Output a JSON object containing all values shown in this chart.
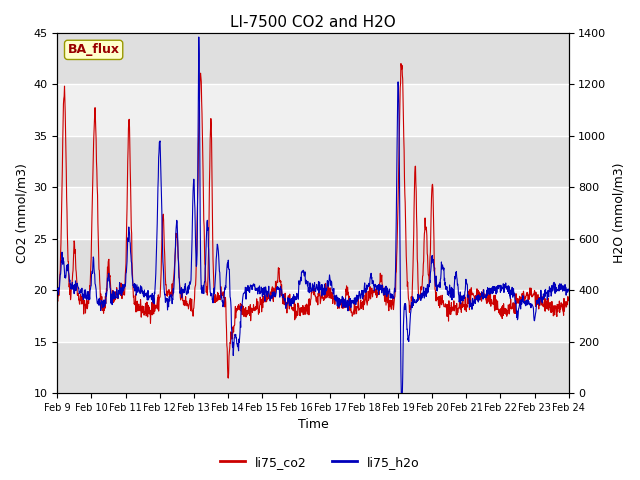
{
  "title": "LI-7500 CO2 and H2O",
  "xlabel": "Time",
  "ylabel_left": "CO2 (mmol/m3)",
  "ylabel_right": "H2O (mmol/m3)",
  "ylim_left": [
    10,
    45
  ],
  "ylim_right": [
    0,
    1400
  ],
  "yticks_left": [
    10,
    15,
    20,
    25,
    30,
    35,
    40,
    45
  ],
  "yticks_right": [
    0,
    200,
    400,
    600,
    800,
    1000,
    1200,
    1400
  ],
  "x_ticks_labels": [
    "Feb 9",
    "Feb 10",
    "Feb 11",
    "Feb 12",
    "Feb 13",
    "Feb 14",
    "Feb 15",
    "Feb 16",
    "Feb 17",
    "Feb 18",
    "Feb 19",
    "Feb 20",
    "Feb 21",
    "Feb 22",
    "Feb 23",
    "Feb 24"
  ],
  "color_co2": "#cc0000",
  "color_h2o": "#0000bb",
  "legend_label_co2": "li75_co2",
  "legend_label_h2o": "li75_h2o",
  "annotation_text": "BA_flux",
  "annotation_bg": "#ffffcc",
  "annotation_border": "#999900",
  "annotation_text_color": "#990000",
  "fig_bg": "#ffffff",
  "plot_bg_light": "#f0f0f0",
  "plot_bg_dark": "#e0e0e0",
  "grid_color": "#ffffff",
  "title_fontsize": 11,
  "axis_fontsize": 9,
  "tick_fontsize": 8,
  "legend_fontsize": 9
}
